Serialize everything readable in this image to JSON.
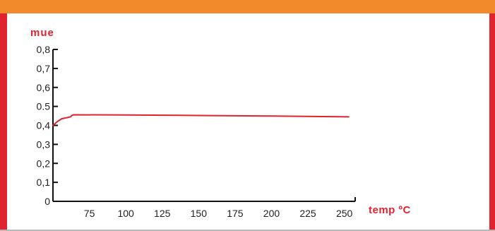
{
  "colors": {
    "top_bar": "#f28a2c",
    "frame": "#e0232f",
    "frame_bottom": "#b8b8b8",
    "line": "#e0232f",
    "axis": "#111111",
    "label": "#e0232f"
  },
  "chart_data": {
    "type": "line",
    "title": "",
    "ylabel": "mue",
    "xlabel": "temp ºC",
    "xlim": [
      50,
      256
    ],
    "ylim": [
      0,
      0.8
    ],
    "x_ticks": [
      75,
      100,
      125,
      150,
      175,
      200,
      225,
      250
    ],
    "x_tick_labels": [
      "75",
      "100",
      "125",
      "150",
      "175",
      "200",
      "225",
      "250"
    ],
    "y_ticks": [
      0,
      0.1,
      0.2,
      0.3,
      0.4,
      0.5,
      0.6,
      0.7,
      0.8
    ],
    "y_tick_labels": [
      "0",
      "0,1",
      "0,2",
      "0,3",
      "0,4",
      "0.5",
      "0,6",
      "0,7",
      "0,8"
    ],
    "grid": false,
    "series": [
      {
        "x": [
          50,
          53,
          56,
          59,
          62,
          63,
          64,
          100,
          150,
          200,
          253
        ],
        "y": [
          0.4,
          0.42,
          0.435,
          0.44,
          0.445,
          0.452,
          0.456,
          0.455,
          0.452,
          0.449,
          0.445
        ]
      }
    ]
  }
}
